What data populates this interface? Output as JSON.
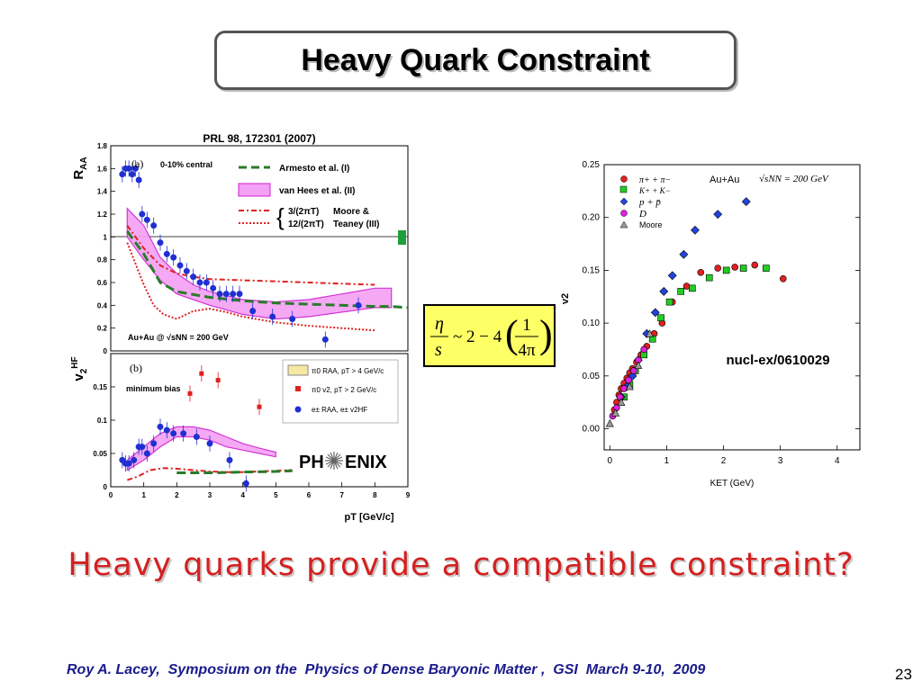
{
  "slide": {
    "title": "Heavy Quark Constraint",
    "conclusion": "Heavy quarks provide a compatible constraint?",
    "footer": "Roy A. Lacey,  Symposium on the  Physics of Dense Baryonic Matter ,  GSI  March 9-10,  2009",
    "page_number": "23"
  },
  "formula": {
    "eta": "η",
    "s": "s",
    "approx": "~ 2 − 4",
    "one": "1",
    "four_pi": "4π"
  },
  "chart_data": [
    {
      "type": "scatter",
      "citation": "PRL 98, 172301 (2007)",
      "panel": "(a)",
      "centrality": "0-10% central",
      "system_label": "Au+Au @ √sNN = 200 GeV",
      "ylabel": "R",
      "ylabel_sub": "AA",
      "xlim": [
        0,
        9
      ],
      "ylim": [
        0,
        1.8
      ],
      "yticks": [
        "0",
        "0.2",
        "0.4",
        "0.6",
        "0.8",
        "1",
        "1.2",
        "1.4",
        "1.6",
        "1.8"
      ],
      "legend": [
        "Armesto et al. (I)",
        "van Hees et al. (II)",
        "3/(2πT)",
        "12/(2πT)",
        "Moore &",
        "Teaney (III)"
      ],
      "series": [
        {
          "name": "e± RAA",
          "x": [
            0.35,
            0.45,
            0.55,
            0.65,
            0.75,
            0.85,
            0.95,
            1.1,
            1.3,
            1.5,
            1.7,
            1.9,
            2.1,
            2.3,
            2.5,
            2.7,
            2.9,
            3.1,
            3.3,
            3.5,
            3.7,
            3.9,
            4.3,
            4.9,
            5.5,
            6.5,
            7.5
          ],
          "y": [
            1.55,
            1.6,
            1.6,
            1.55,
            1.6,
            1.5,
            1.2,
            1.15,
            1.1,
            0.95,
            0.85,
            0.82,
            0.75,
            0.7,
            0.65,
            0.6,
            0.6,
            0.55,
            0.5,
            0.5,
            0.5,
            0.5,
            0.35,
            0.3,
            0.28,
            0.1,
            0.4
          ]
        }
      ],
      "curves": [
        {
          "name": "Armesto et al. (I)",
          "x": [
            0.5,
            1,
            1.5,
            2,
            3,
            4,
            5,
            6,
            7,
            8,
            8.5,
            9
          ],
          "y": [
            1.05,
            0.85,
            0.6,
            0.52,
            0.47,
            0.44,
            0.42,
            0.41,
            0.4,
            0.39,
            0.39,
            0.38
          ]
        },
        {
          "name": "3/(2πT)",
          "x": [
            0.5,
            1,
            1.5,
            2,
            2.5,
            3,
            4,
            5,
            6,
            7,
            8
          ],
          "y": [
            1.1,
            0.9,
            0.75,
            0.68,
            0.65,
            0.63,
            0.62,
            0.61,
            0.6,
            0.59,
            0.58
          ]
        },
        {
          "name": "12/(2πT)",
          "x": [
            0.5,
            1,
            1.3,
            1.6,
            2,
            2.5,
            3,
            3.5,
            4,
            5,
            6,
            7,
            8
          ],
          "y": [
            0.95,
            0.58,
            0.4,
            0.32,
            0.28,
            0.35,
            0.37,
            0.34,
            0.3,
            0.25,
            0.22,
            0.2,
            0.18
          ]
        }
      ],
      "bands": [
        {
          "name": "van Hees et al. (II)",
          "x": [
            0.5,
            1,
            1.5,
            2,
            2.5,
            3,
            4,
            5,
            6,
            7,
            8,
            8.5
          ],
          "upper": [
            1.25,
            1.1,
            0.82,
            0.68,
            0.58,
            0.52,
            0.45,
            0.43,
            0.45,
            0.5,
            0.55,
            0.55
          ],
          "lower": [
            1.0,
            0.8,
            0.62,
            0.5,
            0.45,
            0.4,
            0.32,
            0.28,
            0.3,
            0.34,
            0.38,
            0.38
          ]
        }
      ]
    },
    {
      "type": "scatter",
      "panel": "(b)",
      "centrality": "minimum bias",
      "ylabel": "v",
      "ylabel_sub": "2",
      "ylabel_sup": "HF",
      "xlabel": "pT [GeV/c]",
      "xlim": [
        0,
        9
      ],
      "ylim": [
        0,
        0.2
      ],
      "xticks": [
        "0",
        "1",
        "2",
        "3",
        "4",
        "5",
        "6",
        "7",
        "8",
        "9"
      ],
      "yticks": [
        "0",
        "0.05",
        "0.1",
        "0.15"
      ],
      "legend": [
        "π0 RAA, pT > 4 GeV/c",
        "π0 v2, pT > 2 GeV/c",
        "e± RAA, e± v2HF"
      ],
      "logo": {
        "left": "PH",
        "right": "ENIX"
      },
      "series": [
        {
          "name": "e± v2HF",
          "x": [
            0.35,
            0.45,
            0.55,
            0.7,
            0.85,
            0.95,
            1.1,
            1.3,
            1.5,
            1.7,
            1.9,
            2.2,
            2.6,
            3.0,
            3.6,
            4.1
          ],
          "y": [
            0.04,
            0.035,
            0.035,
            0.04,
            0.06,
            0.06,
            0.05,
            0.065,
            0.09,
            0.085,
            0.08,
            0.08,
            0.075,
            0.065,
            0.04,
            0.005
          ]
        },
        {
          "name": "π0 v2, pT > 2 GeV/c",
          "x": [
            2.4,
            2.75,
            3.25,
            4.5
          ],
          "y": [
            0.14,
            0.17,
            0.16,
            0.12
          ]
        }
      ],
      "curves": [
        {
          "name": "12/(2πT)",
          "x": [
            0.5,
            0.8,
            1.2,
            1.6,
            2.0,
            2.5,
            3.0,
            3.5,
            4.0,
            4.5,
            5.0,
            5.5
          ],
          "y": [
            0.01,
            0.015,
            0.025,
            0.028,
            0.027,
            0.025,
            0.023,
            0.022,
            0.022,
            0.023,
            0.024,
            0.025
          ]
        },
        {
          "name": "Armesto et al. (I)",
          "x": [
            2.0,
            3.0,
            4.0,
            5.0,
            5.5
          ],
          "y": [
            0.021,
            0.021,
            0.022,
            0.023,
            0.024
          ]
        }
      ],
      "bands": [
        {
          "name": "van Hees et al. (II)",
          "x": [
            0.5,
            1,
            1.5,
            2,
            2.5,
            3,
            3.5,
            4,
            4.5,
            5
          ],
          "upper": [
            0.04,
            0.06,
            0.08,
            0.09,
            0.09,
            0.085,
            0.075,
            0.065,
            0.058,
            0.052
          ],
          "lower": [
            0.025,
            0.04,
            0.06,
            0.075,
            0.075,
            0.07,
            0.06,
            0.055,
            0.05,
            0.045
          ]
        }
      ]
    },
    {
      "type": "scatter",
      "annotation": "nucl-ex/0610029",
      "system_label": "Au+Au",
      "energy_label": "√sNN = 200 GeV",
      "xlabel": "KET (GeV)",
      "ylabel": "v2",
      "xlim": [
        -0.1,
        4.4
      ],
      "ylim": [
        -0.02,
        0.25
      ],
      "xticks": [
        "0",
        "1",
        "2",
        "3",
        "4"
      ],
      "yticks": [
        "0.00",
        "0.05",
        "0.10",
        "0.15",
        "0.20",
        "0.25"
      ],
      "legend": [
        "π+ + π−",
        "K+ + K−",
        "p + p̄",
        "D",
        "Moore"
      ],
      "series": [
        {
          "name": "π+ + π−",
          "color": "#e02020",
          "x": [
            0.08,
            0.12,
            0.16,
            0.2,
            0.25,
            0.3,
            0.35,
            0.4,
            0.47,
            0.55,
            0.65,
            0.78,
            0.92,
            1.1,
            1.35,
            1.6,
            1.9,
            2.2,
            2.55,
            3.05
          ],
          "y": [
            0.018,
            0.025,
            0.032,
            0.038,
            0.043,
            0.048,
            0.053,
            0.057,
            0.063,
            0.07,
            0.078,
            0.09,
            0.1,
            0.12,
            0.135,
            0.148,
            0.152,
            0.153,
            0.155,
            0.142
          ]
        },
        {
          "name": "K+ + K−",
          "color": "#22cc22",
          "x": [
            0.25,
            0.35,
            0.45,
            0.6,
            0.75,
            0.9,
            1.05,
            1.25,
            1.45,
            1.75,
            2.05,
            2.35,
            2.75
          ],
          "y": [
            0.03,
            0.042,
            0.055,
            0.07,
            0.085,
            0.105,
            0.12,
            0.13,
            0.133,
            0.143,
            0.15,
            0.152,
            0.152
          ]
        },
        {
          "name": "p + p̄",
          "color": "#2244dd",
          "x": [
            0.2,
            0.3,
            0.4,
            0.5,
            0.65,
            0.8,
            0.95,
            1.1,
            1.3,
            1.5,
            1.9,
            2.4
          ],
          "y": [
            0.03,
            0.04,
            0.05,
            0.065,
            0.09,
            0.11,
            0.13,
            0.145,
            0.165,
            0.188,
            0.203,
            0.215
          ]
        },
        {
          "name": "D",
          "color": "#e020e0",
          "x": [
            0.05,
            0.12,
            0.18,
            0.25,
            0.33,
            0.42,
            0.5,
            0.6
          ],
          "y": [
            0.012,
            0.02,
            0.03,
            0.038,
            0.046,
            0.055,
            0.065,
            0.075
          ]
        },
        {
          "name": "Moore",
          "color": "#999999",
          "x": [
            0.0,
            0.1,
            0.2,
            0.35,
            0.5,
            0.7
          ],
          "y": [
            0.005,
            0.015,
            0.025,
            0.04,
            0.06,
            0.09
          ]
        }
      ]
    }
  ]
}
